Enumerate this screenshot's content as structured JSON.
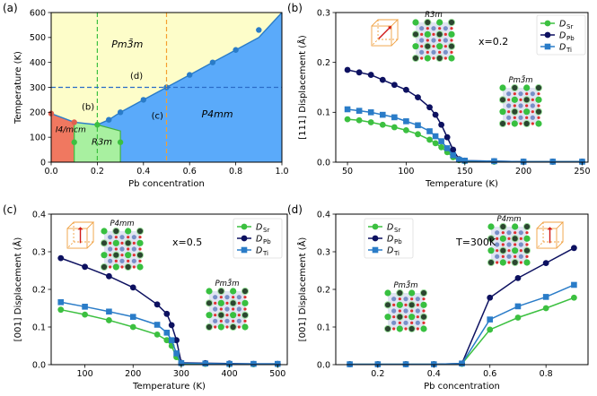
{
  "colors": {
    "sr": "#3cc040",
    "pb": "#0d1160",
    "ti": "#2a7cc8",
    "cubic": "#fdfdc9",
    "tetra": "#5aaafa",
    "rhombo": "#a8f0a0",
    "tetra_i4": "#f07860",
    "phase_line": "#2a7cc8",
    "dash_green": "#3cc040",
    "dash_orange": "#f5a030",
    "dash_blue": "#2a6cc8"
  },
  "chart_data": [
    {
      "id": "a",
      "type": "line",
      "panel_label": "(a)",
      "xlabel": "Pb concentration",
      "ylabel": "Temperature (K)",
      "xlim": [
        0,
        1.0
      ],
      "ylim": [
        0,
        600
      ],
      "xticks": [
        "0.0",
        "0.2",
        "0.4",
        "0.6",
        "0.8",
        "1.0"
      ],
      "yticks": [
        "0",
        "100",
        "200",
        "300",
        "400",
        "500",
        "600"
      ],
      "regions": {
        "cubic": "Pm3̄m",
        "tetra": "P4mm",
        "rhombo": "R3m",
        "tetra_i4": "I4/mcm"
      },
      "annotations": [
        "(b)",
        "(c)",
        "(d)"
      ],
      "boundary_cubic_tetra": {
        "x": [
          0.2,
          0.25,
          0.3,
          0.4,
          0.5,
          0.6,
          0.7,
          0.8,
          0.9,
          1.0
        ],
        "y": [
          150,
          170,
          200,
          250,
          300,
          350,
          400,
          450,
          500,
          600
        ]
      },
      "boundary_rhombo": {
        "x": [
          0.1,
          0.1,
          0.2,
          0.3,
          0.3
        ],
        "y": [
          0,
          80,
          150,
          125,
          80
        ]
      },
      "boundary_i4": {
        "x": [
          0.0,
          0.1
        ],
        "y": [
          195,
          160
        ]
      },
      "markers_x": [
        0.1,
        0.2,
        0.25,
        0.3,
        0.4,
        0.5,
        0.6,
        0.7,
        0.8,
        0.9,
        0.3,
        0.1
      ],
      "markers_y": [
        160,
        150,
        170,
        200,
        250,
        300,
        350,
        400,
        450,
        530,
        80,
        80
      ],
      "dashed_vertical": [
        0.2,
        0.5
      ],
      "dashed_horizontal": 300
    },
    {
      "id": "b",
      "type": "line",
      "panel_label": "(b)",
      "xlabel": "Temperature (K)",
      "ylabel": "[111] Displacement (Å)",
      "xlim": [
        40,
        255
      ],
      "ylim": [
        0,
        0.3
      ],
      "xticks": [
        "50",
        "100",
        "150",
        "200",
        "250"
      ],
      "yticks": [
        "0.0",
        "0.1",
        "0.2",
        "0.3"
      ],
      "annotation": "x=0.2",
      "phase_top": "R3m",
      "phase_bottom": "Pm3̄m",
      "x": [
        50,
        60,
        70,
        80,
        90,
        100,
        110,
        120,
        125,
        130,
        135,
        140,
        145,
        150,
        175,
        200,
        225,
        250
      ],
      "series": [
        {
          "name": "D_Sr",
          "label_main": "D",
          "label_sub": "Sr",
          "marker": "circle",
          "values": [
            0.086,
            0.084,
            0.08,
            0.075,
            0.07,
            0.064,
            0.056,
            0.045,
            0.038,
            0.03,
            0.02,
            0.01,
            0.004,
            0.002,
            0.001,
            0.001,
            0.001,
            0.001
          ]
        },
        {
          "name": "D_Pb",
          "label_main": "D",
          "label_sub": "Pb",
          "marker": "circle",
          "values": [
            0.185,
            0.18,
            0.175,
            0.165,
            0.155,
            0.145,
            0.13,
            0.11,
            0.095,
            0.075,
            0.05,
            0.025,
            0.006,
            0.003,
            0.002,
            0.001,
            0.001,
            0.001
          ]
        },
        {
          "name": "D_Ti",
          "label_main": "D",
          "label_sub": "Ti",
          "marker": "square",
          "values": [
            0.106,
            0.103,
            0.1,
            0.095,
            0.09,
            0.082,
            0.074,
            0.062,
            0.052,
            0.042,
            0.028,
            0.014,
            0.005,
            0.003,
            0.002,
            0.001,
            0.001,
            0.001
          ]
        }
      ]
    },
    {
      "id": "c",
      "type": "line",
      "panel_label": "(c)",
      "xlabel": "Temperature (K)",
      "ylabel": "[001] Displacement (Å)",
      "xlim": [
        30,
        520
      ],
      "ylim": [
        0,
        0.4
      ],
      "xticks": [
        "100",
        "200",
        "300",
        "400",
        "500"
      ],
      "yticks": [
        "0.0",
        "0.1",
        "0.2",
        "0.3",
        "0.4"
      ],
      "annotation": "x=0.5",
      "phase_top": "P4mm",
      "phase_bottom": "Pm3̄m",
      "x": [
        50,
        100,
        150,
        200,
        250,
        270,
        280,
        290,
        300,
        350,
        400,
        450,
        500
      ],
      "series": [
        {
          "name": "D_Sr",
          "label_main": "D",
          "label_sub": "Sr",
          "marker": "circle",
          "values": [
            0.146,
            0.133,
            0.118,
            0.1,
            0.08,
            0.065,
            0.05,
            0.02,
            0.003,
            0.002,
            0.001,
            0.001,
            0.001
          ]
        },
        {
          "name": "D_Pb",
          "label_main": "D",
          "label_sub": "Pb",
          "marker": "circle",
          "values": [
            0.283,
            0.26,
            0.235,
            0.205,
            0.16,
            0.135,
            0.105,
            0.065,
            0.005,
            0.004,
            0.003,
            0.002,
            0.002
          ]
        },
        {
          "name": "D_Ti",
          "label_main": "D",
          "label_sub": "Ti",
          "marker": "square",
          "values": [
            0.166,
            0.154,
            0.141,
            0.127,
            0.106,
            0.085,
            0.065,
            0.03,
            0.004,
            0.003,
            0.002,
            0.002,
            0.002
          ]
        }
      ]
    },
    {
      "id": "d",
      "type": "line",
      "panel_label": "(d)",
      "xlabel": "Pb concentration",
      "ylabel": "[001] Displacement (Å)",
      "xlim": [
        0.05,
        0.95
      ],
      "ylim": [
        0,
        0.4
      ],
      "xticks": [
        "0.2",
        "0.4",
        "0.6",
        "0.8"
      ],
      "yticks": [
        "0.0",
        "0.1",
        "0.2",
        "0.3",
        "0.4"
      ],
      "annotation": "T=300K",
      "phase_top": "P4mm",
      "phase_bottom": "Pm3̄m",
      "x": [
        0.1,
        0.2,
        0.3,
        0.4,
        0.5,
        0.6,
        0.7,
        0.8,
        0.9
      ],
      "series": [
        {
          "name": "D_Sr",
          "label_main": "D",
          "label_sub": "Sr",
          "marker": "circle",
          "values": [
            0.001,
            0.001,
            0.001,
            0.001,
            0.002,
            0.093,
            0.125,
            0.15,
            0.178
          ]
        },
        {
          "name": "D_Pb",
          "label_main": "D",
          "label_sub": "Pb",
          "marker": "circle",
          "values": [
            0.001,
            0.001,
            0.001,
            0.001,
            0.003,
            0.178,
            0.23,
            0.27,
            0.31
          ]
        },
        {
          "name": "D_Ti",
          "label_main": "D",
          "label_sub": "Ti",
          "marker": "square",
          "values": [
            0.001,
            0.001,
            0.001,
            0.001,
            0.003,
            0.12,
            0.155,
            0.18,
            0.212
          ]
        }
      ]
    }
  ]
}
